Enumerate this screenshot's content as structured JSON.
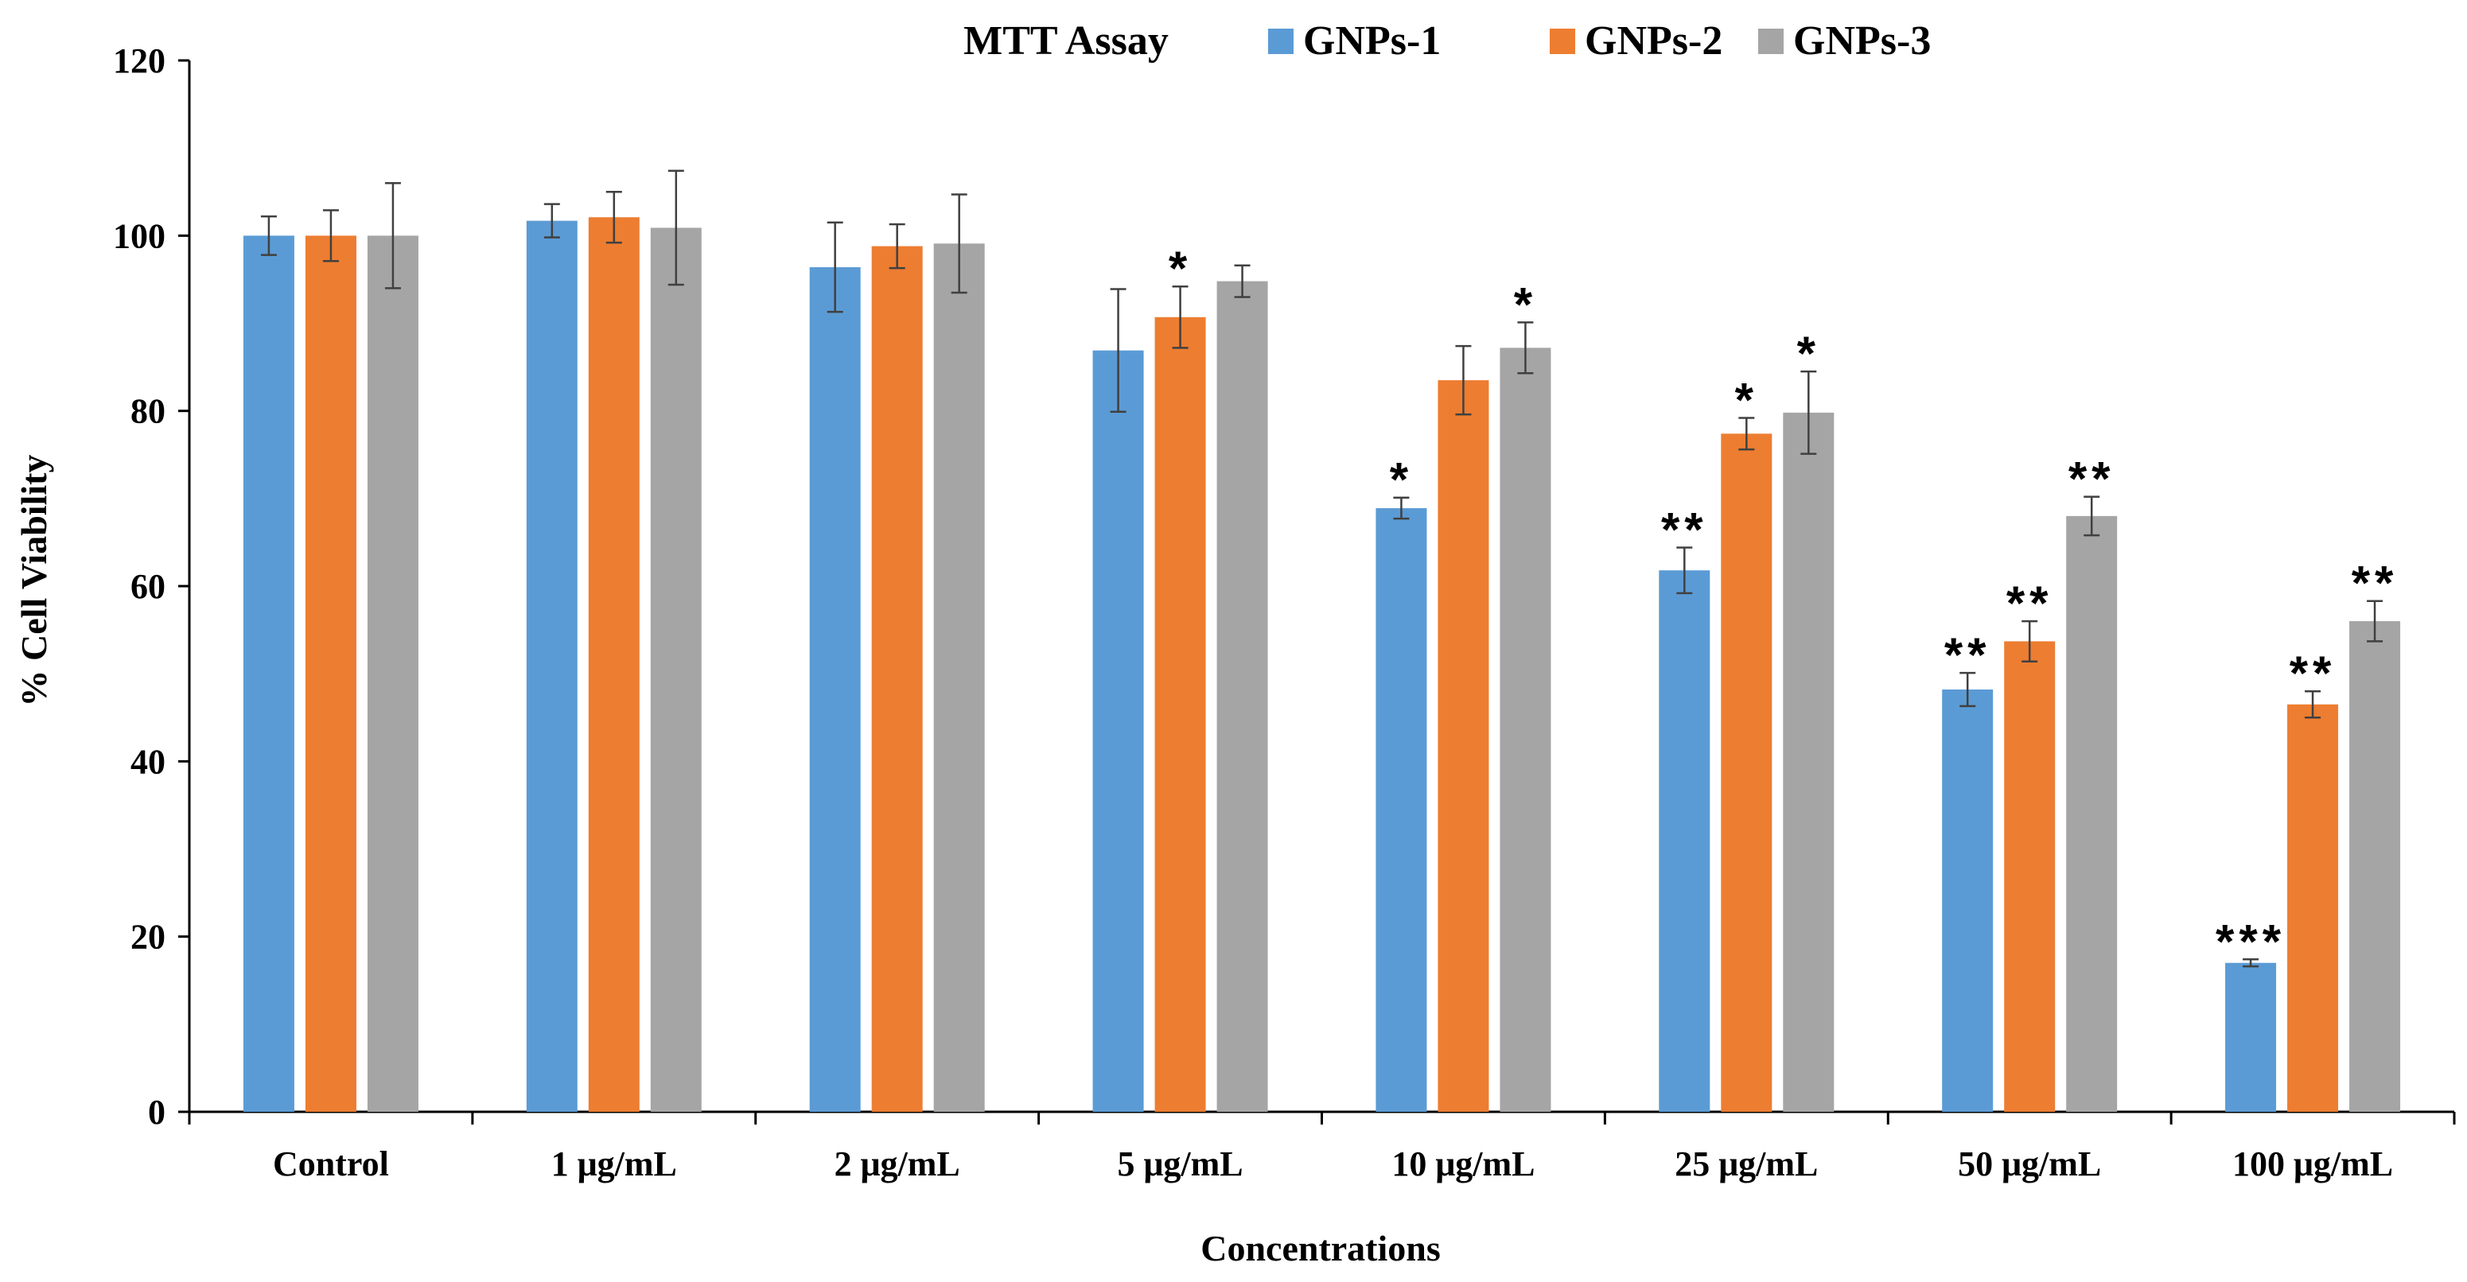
{
  "chart_data": {
    "type": "bar",
    "title": "MTT Assay",
    "xlabel": "Concentrations",
    "ylabel": "% Cell Viability",
    "ylim": [
      0,
      120
    ],
    "yticks": [
      0,
      20,
      40,
      60,
      80,
      100,
      120
    ],
    "grid": false,
    "legend_position": "top",
    "categories": [
      "Control",
      "1 μg/mL",
      "2 μg/mL",
      "5 μg/mL",
      "10 μg/mL",
      "25 μg/mL",
      "50 μg/mL",
      "100 μg/mL"
    ],
    "series": [
      {
        "name": "GNPs-1",
        "color": "#5B9BD5",
        "values": [
          100,
          101.7,
          96.4,
          86.9,
          68.9,
          61.8,
          48.2,
          17.0
        ],
        "errors": [
          2.2,
          1.9,
          5.1,
          7.0,
          1.2,
          2.6,
          1.9,
          0.4
        ],
        "significance": [
          "",
          "",
          "",
          "",
          "*",
          "**",
          "**",
          "***"
        ]
      },
      {
        "name": "GNPs-2",
        "color": "#ED7D31",
        "values": [
          100,
          102.1,
          98.8,
          90.7,
          83.5,
          77.4,
          53.7,
          46.5
        ],
        "errors": [
          2.9,
          2.9,
          2.5,
          3.5,
          3.9,
          1.8,
          2.3,
          1.5
        ],
        "significance": [
          "",
          "",
          "",
          "*",
          "",
          "*",
          "**",
          "**"
        ]
      },
      {
        "name": "GNPs-3",
        "color": "#A5A5A5",
        "values": [
          100,
          100.9,
          99.1,
          94.8,
          87.2,
          79.8,
          68.0,
          56.0
        ],
        "errors": [
          6.0,
          6.5,
          5.6,
          1.8,
          2.9,
          4.7,
          2.2,
          2.3
        ],
        "significance": [
          "",
          "",
          "",
          "",
          "*",
          "*",
          "**",
          "**"
        ]
      }
    ]
  }
}
